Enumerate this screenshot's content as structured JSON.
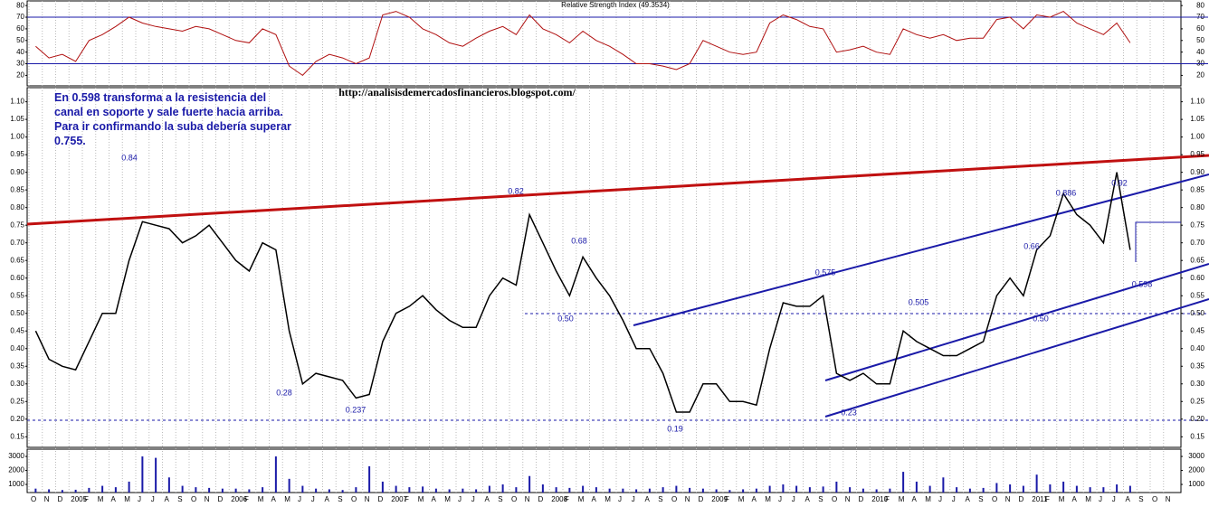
{
  "chart_data": [
    {
      "type": "line",
      "title": "Relative Strength Index (49.3534)",
      "color": "#b01010",
      "values": [
        45,
        35,
        38,
        32,
        50,
        55,
        62,
        70,
        65,
        62,
        60,
        58,
        62,
        60,
        55,
        50,
        48,
        60,
        55,
        28,
        20,
        32,
        38,
        35,
        30,
        35,
        72,
        75,
        70,
        60,
        55,
        48,
        45,
        52,
        58,
        62,
        55,
        72,
        60,
        55,
        48,
        58,
        50,
        45,
        38,
        30,
        30,
        28,
        25,
        30,
        50,
        45,
        40,
        38,
        40,
        65,
        72,
        68,
        62,
        60,
        40,
        42,
        45,
        40,
        38,
        60,
        55,
        52,
        55,
        50,
        52,
        52,
        68,
        70,
        60,
        72,
        70,
        75,
        65,
        60,
        55,
        65,
        48,
        null,
        null,
        null
      ],
      "levels": [
        70,
        30
      ],
      "level_color": "#1a1aa8",
      "ylim": [
        11,
        84
      ],
      "yticks": [
        20,
        30,
        40,
        50,
        60,
        70,
        80
      ]
    },
    {
      "type": "line",
      "color": "#000000",
      "values": [
        0.45,
        0.37,
        0.35,
        0.34,
        0.42,
        0.5,
        0.5,
        0.65,
        0.76,
        0.75,
        0.74,
        0.7,
        0.72,
        0.75,
        0.7,
        0.65,
        0.62,
        0.7,
        0.68,
        0.45,
        0.3,
        0.33,
        0.32,
        0.31,
        0.26,
        0.27,
        0.42,
        0.5,
        0.52,
        0.55,
        0.51,
        0.48,
        0.46,
        0.46,
        0.55,
        0.6,
        0.58,
        0.78,
        0.7,
        0.62,
        0.55,
        0.66,
        0.6,
        0.55,
        0.48,
        0.4,
        0.4,
        0.33,
        0.22,
        0.22,
        0.3,
        0.3,
        0.25,
        0.25,
        0.24,
        0.4,
        0.53,
        0.52,
        0.52,
        0.55,
        0.33,
        0.31,
        0.33,
        0.3,
        0.3,
        0.45,
        0.42,
        0.4,
        0.38,
        0.38,
        0.4,
        0.42,
        0.55,
        0.6,
        0.55,
        0.68,
        0.72,
        0.84,
        0.78,
        0.75,
        0.7,
        0.9,
        0.68,
        null,
        null,
        null
      ],
      "ylim": [
        0.12,
        1.14
      ],
      "yticks": [
        0.15,
        {
          "value": 0.2,
          "label": "0.20"
        },
        0.25,
        {
          "value": 0.3,
          "label": "0.30"
        },
        0.35,
        {
          "value": 0.4,
          "label": "0.40"
        },
        0.45,
        {
          "value": 0.5,
          "label": "0.50"
        },
        0.55,
        {
          "value": 0.6,
          "label": "0.60"
        },
        0.65,
        {
          "value": 0.7,
          "label": "0.70"
        },
        0.75,
        {
          "value": 0.8,
          "label": "0.80"
        },
        0.85,
        {
          "value": 0.9,
          "label": "0.90"
        },
        0.95,
        {
          "value": 1,
          "label": "1.00"
        },
        1.05,
        {
          "value": 1.1,
          "label": "1.10"
        }
      ],
      "source": "http://analisisdemercadosfinancieros.blogspot.com/",
      "comment": [
        "En 0.598 transforma a la resistencia del",
        "canal en soporte y sale fuerte hacia arriba.",
        "Para ir confirmando la suba debería superar",
        "0.755."
      ],
      "annotations": [
        "0.84",
        "0.82",
        "0.68",
        "0.50",
        "0.28",
        "0.237",
        "0.19",
        "0.575",
        "0.23",
        "0.505",
        "0.50",
        "0.66",
        "0.886",
        "0.92",
        "0.598"
      ]
    },
    {
      "type": "bar",
      "color": "#1a1aa8",
      "categories": [
        "O",
        "N",
        "D",
        "2005",
        "F",
        "M",
        "A",
        "M",
        "J",
        "J",
        "A",
        "S",
        "O",
        "N",
        "D",
        "2006",
        "F",
        "M",
        "A",
        "M",
        "J",
        "J",
        "A",
        "S",
        "O",
        "N",
        "D",
        "2007",
        "F",
        "M",
        "A",
        "M",
        "J",
        "J",
        "A",
        "S",
        "O",
        "N",
        "D",
        "2008",
        "F",
        "M",
        "A",
        "M",
        "J",
        "J",
        "A",
        "S",
        "O",
        "N",
        "D",
        "2009",
        "F",
        "M",
        "A",
        "M",
        "J",
        "J",
        "A",
        "S",
        "O",
        "N",
        "D",
        "2010",
        "F",
        "M",
        "A",
        "M",
        "J",
        "J",
        "A",
        "S",
        "O",
        "N",
        "D",
        "2011",
        "F",
        "M",
        "A",
        "M",
        "J",
        "J",
        "A",
        "S",
        "O",
        "N"
      ],
      "values": [
        700,
        650,
        600,
        620,
        750,
        900,
        800,
        1200,
        3000,
        2900,
        1500,
        900,
        800,
        750,
        700,
        700,
        650,
        800,
        3000,
        1400,
        900,
        700,
        650,
        600,
        800,
        2300,
        1200,
        900,
        800,
        850,
        700,
        650,
        700,
        650,
        900,
        1000,
        800,
        1600,
        1000,
        800,
        750,
        900,
        800,
        700,
        700,
        650,
        700,
        800,
        900,
        750,
        700,
        650,
        600,
        650,
        700,
        900,
        1000,
        900,
        800,
        850,
        1200,
        800,
        700,
        650,
        700,
        1900,
        1200,
        900,
        1500,
        800,
        700,
        750,
        1100,
        1000,
        900,
        1700,
        1000,
        1200,
        900,
        800,
        800,
        1000,
        900,
        null,
        null,
        null
      ],
      "ylim": [
        420,
        3520
      ],
      "yticks": [
        1000,
        2000,
        3000
      ]
    }
  ]
}
